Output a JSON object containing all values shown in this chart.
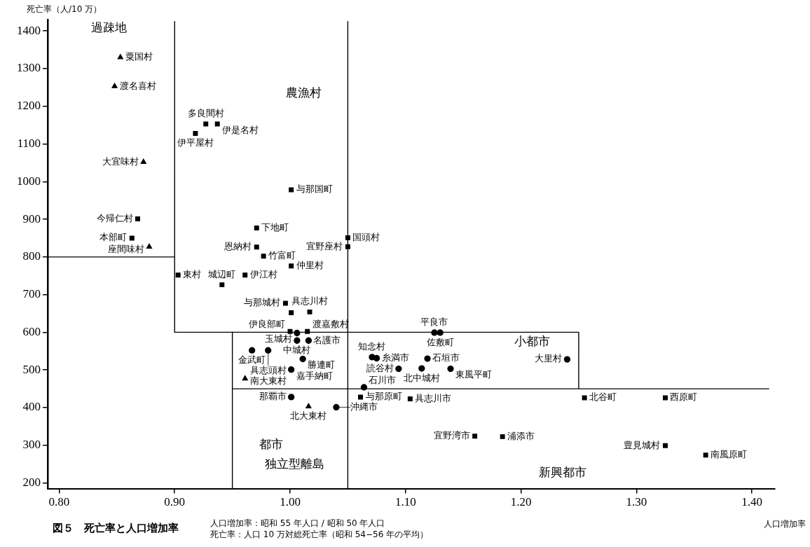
{
  "chart_data": {
    "type": "scatter",
    "title": "図５　死亡率と人口増加率",
    "xlabel": "人口増加率",
    "ylabel": "死亡率（人/10 万）",
    "xlim": [
      0.79,
      1.42
    ],
    "ylim": [
      185,
      1430
    ],
    "xticks": [
      {
        "value": 0.8,
        "label": "0.80"
      },
      {
        "value": 0.9,
        "label": "0.90"
      },
      {
        "value": 1.0,
        "label": "1.00"
      },
      {
        "value": 1.1,
        "label": "1.10"
      },
      {
        "value": 1.2,
        "label": "1.20"
      },
      {
        "value": 1.3,
        "label": "1.30"
      },
      {
        "value": 1.4,
        "label": "1.40"
      }
    ],
    "yticks": [
      200,
      300,
      400,
      500,
      600,
      700,
      800,
      900,
      1000,
      1100,
      1200,
      1300,
      1400
    ],
    "series": [
      {
        "marker": "triangle",
        "color": "#000000",
        "x": [
          0.853,
          0.848,
          0.873,
          0.878
        ],
        "values": [
          1330,
          1253,
          1052,
          827
        ]
      },
      {
        "marker": "square",
        "color": "#000000",
        "x": [
          0.868,
          0.863,
          0.927,
          0.937,
          0.918,
          1.001,
          0.971,
          0.971,
          0.977,
          1.001,
          1.05,
          1.05,
          0.903,
          0.961,
          0.941,
          0.996,
          1.001,
          1.017,
          1.0,
          1.015
        ],
        "values": [
          901,
          850,
          1153,
          1153,
          1128,
          978,
          877,
          826,
          802,
          776,
          851,
          827,
          752,
          752,
          726,
          677,
          652,
          654,
          602,
          602
        ]
      },
      {
        "marker": "circle",
        "color": "#000000",
        "x": [
          1.006,
          1.006,
          1.016,
          0.967,
          0.981,
          1.011,
          1.001,
          1.071,
          1.075,
          1.094,
          1.114,
          1.119,
          1.064,
          1.125,
          1.13,
          1.139,
          1.24
        ],
        "values": [
          598,
          578,
          578,
          552,
          552,
          529,
          501,
          534,
          531,
          503,
          504,
          530,
          454,
          599,
          599,
          503,
          528
        ]
      },
      {
        "marker": "triangle",
        "color": "#000000",
        "x": [
          0.961,
          1.016
        ],
        "values": [
          477,
          403
        ]
      },
      {
        "marker": "circle",
        "color": "#000000",
        "x": [
          1.001,
          1.04
        ],
        "values": [
          428,
          401
        ]
      },
      {
        "marker": "square",
        "color": "#000000",
        "x": [
          1.061,
          1.104,
          1.255,
          1.325,
          1.16,
          1.184,
          1.325,
          1.36
        ],
        "values": [
          428,
          423,
          426,
          426,
          324,
          323,
          299,
          274
        ]
      },
      {
        "type": "line",
        "marker": "none",
        "color": "#000000",
        "x": [
          0.79,
          0.9
        ],
        "values": [
          800,
          800
        ]
      },
      {
        "type": "line",
        "marker": "none",
        "color": "#000000",
        "x": [
          0.9,
          0.9,
          1.25,
          1.25,
          1.415
        ],
        "values": [
          1425,
          600,
          600,
          450,
          450
        ]
      },
      {
        "type": "line",
        "marker": "none",
        "color": "#000000",
        "x": [
          0.95,
          1.25
        ],
        "values": [
          450,
          450
        ]
      },
      {
        "type": "line",
        "marker": "none",
        "color": "#000000",
        "x": [
          1.05,
          1.05
        ],
        "values": [
          1425,
          185
        ]
      },
      {
        "type": "line",
        "marker": "none",
        "color": "#000000",
        "x": [
          0.95,
          0.95
        ],
        "values": [
          600,
          185
        ]
      }
    ],
    "annotations": [
      {
        "text": "粟国村",
        "x": 0.853,
        "y": 1330
      },
      {
        "text": "渡名喜村",
        "x": 0.848,
        "y": 1253
      },
      {
        "text": "大宜味村",
        "x": 0.873,
        "y": 1052
      },
      {
        "text": "座間味村",
        "x": 0.878,
        "y": 827
      },
      {
        "text": "今帰仁村",
        "x": 0.868,
        "y": 901
      },
      {
        "text": "本部町",
        "x": 0.863,
        "y": 850
      },
      {
        "text": "多良間村",
        "x": 0.927,
        "y": 1153
      },
      {
        "text": "伊是名村",
        "x": 0.937,
        "y": 1153
      },
      {
        "text": "伊平屋村",
        "x": 0.918,
        "y": 1128
      },
      {
        "text": "与那国町",
        "x": 1.001,
        "y": 978
      },
      {
        "text": "下地町",
        "x": 0.971,
        "y": 877
      },
      {
        "text": "恩納村",
        "x": 0.971,
        "y": 826
      },
      {
        "text": "竹富町",
        "x": 0.977,
        "y": 802
      },
      {
        "text": "仲里村",
        "x": 1.001,
        "y": 776
      },
      {
        "text": "国頭村",
        "x": 1.05,
        "y": 851
      },
      {
        "text": "宜野座村",
        "x": 1.05,
        "y": 827
      },
      {
        "text": "東村",
        "x": 0.903,
        "y": 752
      },
      {
        "text": "伊江村",
        "x": 0.961,
        "y": 752
      },
      {
        "text": "城辺町",
        "x": 0.941,
        "y": 726
      },
      {
        "text": "与那城村",
        "x": 0.996,
        "y": 677
      },
      {
        "text": "具志川村",
        "x": 1.017,
        "y": 654
      },
      {
        "text": "伊良部町",
        "x": 1.0,
        "y": 602
      },
      {
        "text": "渡嘉敷村",
        "x": 1.015,
        "y": 602
      },
      {
        "text": "玉城村",
        "x": 1.006,
        "y": 598
      },
      {
        "text": "中城村",
        "x": 1.006,
        "y": 578
      },
      {
        "text": "名護市",
        "x": 1.016,
        "y": 578
      },
      {
        "text": "金武町",
        "x": 0.967,
        "y": 552
      },
      {
        "text": "具志頭村",
        "x": 0.981,
        "y": 552
      },
      {
        "text": "勝連町",
        "x": 1.011,
        "y": 529
      },
      {
        "text": "嘉手納町",
        "x": 1.001,
        "y": 501
      },
      {
        "text": "知念村",
        "x": 1.071,
        "y": 534
      },
      {
        "text": "糸満市",
        "x": 1.075,
        "y": 531
      },
      {
        "text": "読谷村",
        "x": 1.094,
        "y": 503
      },
      {
        "text": "北中城村",
        "x": 1.114,
        "y": 504
      },
      {
        "text": "石垣市",
        "x": 1.119,
        "y": 530
      },
      {
        "text": "石川市",
        "x": 1.064,
        "y": 454
      },
      {
        "text": "平良市",
        "x": 1.125,
        "y": 599
      },
      {
        "text": "佐敷町",
        "x": 1.13,
        "y": 599
      },
      {
        "text": "東風平町",
        "x": 1.139,
        "y": 503
      },
      {
        "text": "大里村",
        "x": 1.24,
        "y": 528
      },
      {
        "text": "南大東村",
        "x": 0.961,
        "y": 477
      },
      {
        "text": "北大東村",
        "x": 1.016,
        "y": 403
      },
      {
        "text": "那覇市",
        "x": 1.001,
        "y": 428
      },
      {
        "text": "沖縄市",
        "x": 1.04,
        "y": 401
      },
      {
        "text": "与那原町",
        "x": 1.061,
        "y": 428
      },
      {
        "text": "具志川市",
        "x": 1.104,
        "y": 423
      },
      {
        "text": "北谷町",
        "x": 1.255,
        "y": 426
      },
      {
        "text": "西原町",
        "x": 1.325,
        "y": 426
      },
      {
        "text": "宜野湾市",
        "x": 1.16,
        "y": 324
      },
      {
        "text": "浦添市",
        "x": 1.184,
        "y": 323
      },
      {
        "text": "豊見城村",
        "x": 1.325,
        "y": 299
      },
      {
        "text": "南風原町",
        "x": 1.36,
        "y": 274
      },
      "過疎地",
      "農漁村",
      "小都市",
      "都市",
      "独立型離島",
      "新興都市",
      "人口増加率：昭和 55 年人口 / 昭和 50 年人口",
      "死亡率：人口 10 万対総死亡率（昭和 54−56 年の平均）"
    ]
  }
}
